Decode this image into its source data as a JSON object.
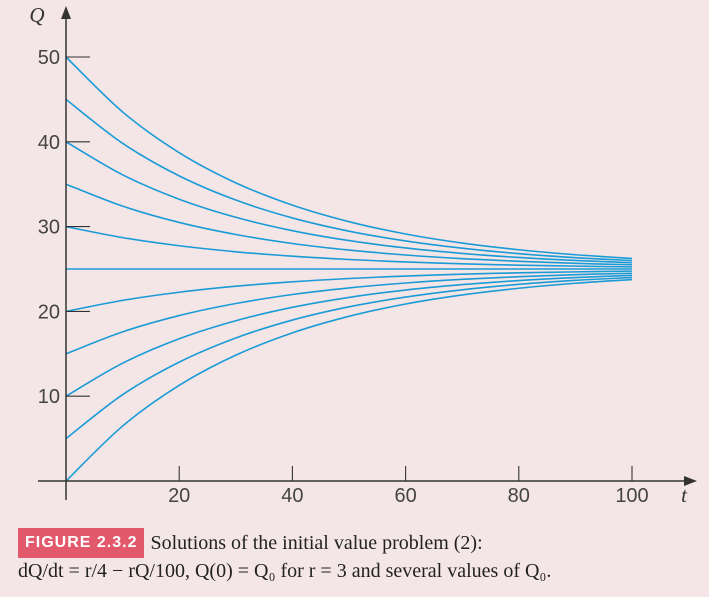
{
  "figure": {
    "label": "FIGURE 2.3.2",
    "caption_line1": "Solutions of the initial value problem (2):",
    "caption_line2": "dQ/dt = r/4 − rQ/100, Q(0) = Q₀ for r = 3 and several values of Q₀."
  },
  "chart_data": {
    "type": "line",
    "xlabel": "t",
    "ylabel": "Q",
    "xlim": [
      0,
      100
    ],
    "ylim": [
      0,
      50
    ],
    "x_ticks": [
      20,
      40,
      60,
      80,
      100
    ],
    "y_ticks": [
      10,
      20,
      30,
      40,
      50
    ],
    "grid": false,
    "legend": "none",
    "line_color": "#1a9bd7",
    "axis_color": "#333333",
    "parameters": {
      "r": 3
    },
    "equation": "Q(t) = 25 + (Q0 − 25)·exp(−0.03·t)",
    "x": [
      0,
      10,
      20,
      30,
      40,
      50,
      60,
      70,
      80,
      90,
      100
    ],
    "series": [
      {
        "values": [
          50,
          43.52,
          38.72,
          35.16,
          32.53,
          30.58,
          29.13,
          28.06,
          27.27,
          26.68,
          26.24
        ]
      },
      {
        "values": [
          45,
          39.82,
          35.98,
          33.13,
          31.02,
          29.46,
          28.31,
          27.45,
          26.81,
          26.34,
          26.0
        ]
      },
      {
        "values": [
          40,
          36.11,
          33.23,
          31.1,
          29.52,
          28.35,
          27.48,
          26.84,
          26.36,
          26.01,
          25.75
        ]
      },
      {
        "values": [
          35,
          32.41,
          30.49,
          29.07,
          28.01,
          27.23,
          26.65,
          26.22,
          25.91,
          25.67,
          25.5
        ]
      },
      {
        "values": [
          30,
          28.7,
          27.74,
          27.03,
          26.51,
          26.12,
          25.83,
          25.61,
          25.45,
          25.34,
          25.25
        ]
      },
      {
        "values": [
          25,
          25,
          25,
          25,
          25,
          25,
          25,
          25,
          25,
          25,
          25
        ]
      },
      {
        "values": [
          20,
          21.3,
          22.26,
          22.97,
          23.49,
          23.88,
          24.17,
          24.39,
          24.55,
          24.66,
          24.75
        ]
      },
      {
        "values": [
          15,
          17.59,
          19.51,
          20.93,
          21.99,
          22.77,
          23.35,
          23.78,
          24.09,
          24.33,
          24.5
        ]
      },
      {
        "values": [
          10,
          13.89,
          16.77,
          18.9,
          20.48,
          21.65,
          22.52,
          23.16,
          23.64,
          23.99,
          24.25
        ]
      },
      {
        "values": [
          5,
          10.18,
          14.02,
          16.87,
          18.98,
          20.54,
          21.69,
          22.55,
          23.19,
          23.66,
          24.0
        ]
      },
      {
        "values": [
          0,
          6.48,
          11.28,
          14.84,
          17.47,
          19.42,
          20.87,
          21.94,
          22.73,
          23.32,
          23.76
        ]
      }
    ]
  }
}
